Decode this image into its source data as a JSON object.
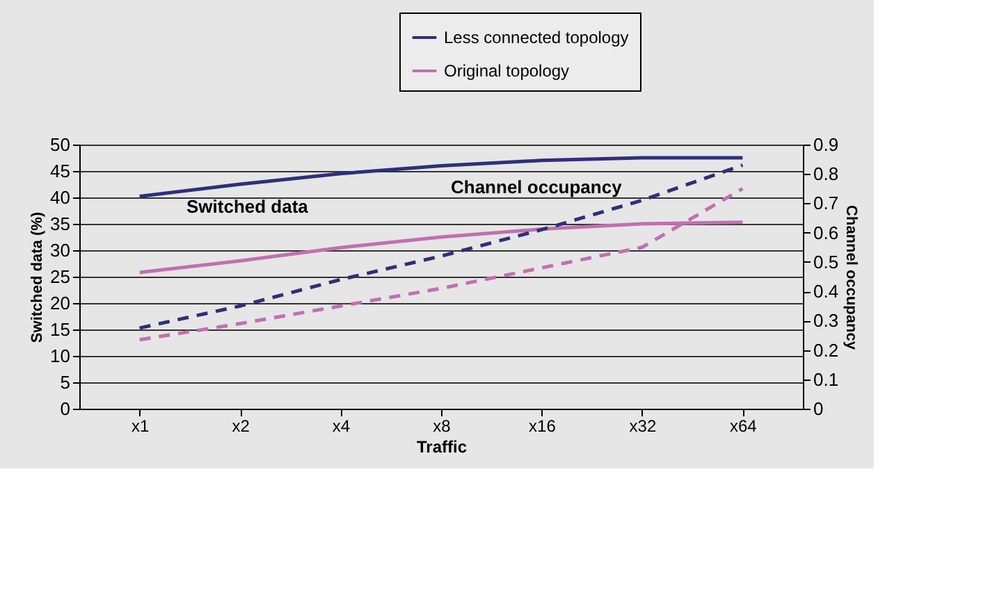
{
  "chart_data": {
    "type": "line",
    "xlabel": "Traffic",
    "ylabel": "Switched data (%)",
    "y2label": "Channel occupancy",
    "categories": [
      "x1",
      "x2",
      "x4",
      "x8",
      "x16",
      "x32",
      "x64"
    ],
    "series": [
      {
        "name": "Less connected topology",
        "color": "#2e2f7a",
        "line_style": "solid",
        "values": [
          40.2,
          42.5,
          44.5,
          46,
          47,
          47.5,
          47.5
        ]
      },
      {
        "name": "Original topology",
        "color": "#c070b0",
        "line_style": "solid",
        "values": [
          25.8,
          28,
          30.5,
          32.5,
          34,
          35,
          35.3
        ]
      },
      {
        "color": "#2e2f7a",
        "line_style": "dashed",
        "axis": "y2",
        "values": [
          0.275,
          0.35,
          0.44,
          0.52,
          0.61,
          0.71,
          0.83
        ]
      },
      {
        "color": "#c070b0",
        "line_style": "dashed",
        "axis": "y2",
        "values": [
          0.235,
          0.29,
          0.35,
          0.41,
          0.48,
          0.55,
          0.75
        ]
      }
    ],
    "ylim": [
      0,
      50
    ],
    "yticks": [
      0,
      5,
      10,
      15,
      20,
      25,
      30,
      35,
      40,
      45,
      50
    ],
    "y2lim": [
      0,
      0.9
    ],
    "y2ticks": [
      0,
      0.1,
      0.2,
      0.3,
      0.4,
      0.5,
      0.6,
      0.7,
      0.8,
      0.9
    ],
    "annotations": [
      "Switched data",
      "Channel occupancy"
    ],
    "grid": "y",
    "legend": "top",
    "marker": "none"
  }
}
